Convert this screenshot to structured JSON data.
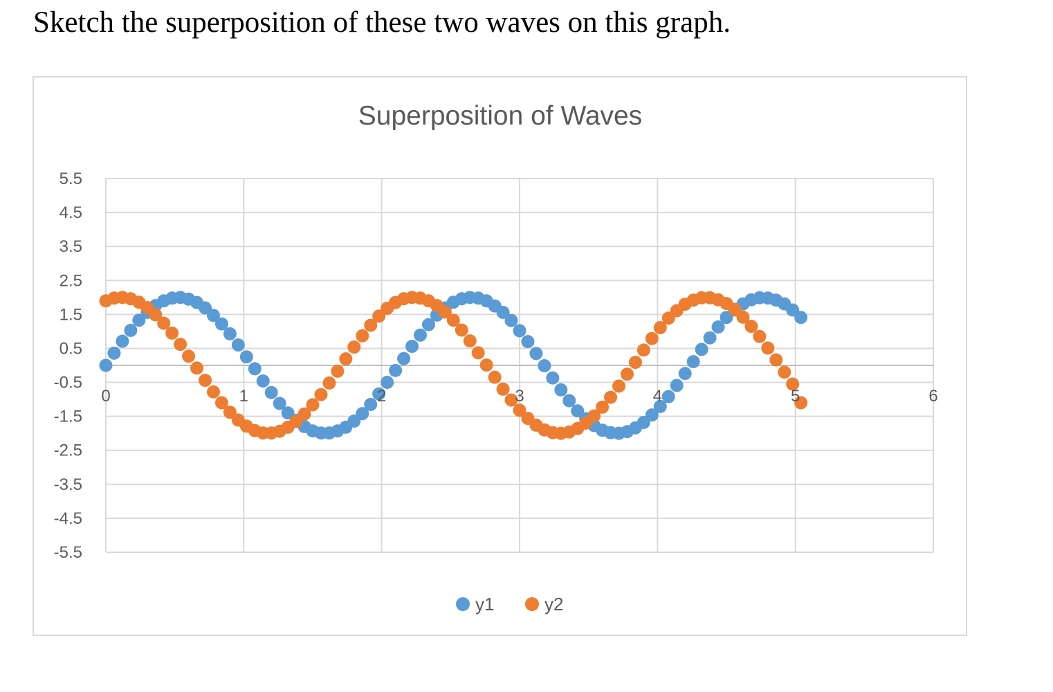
{
  "question": "Sketch the superposition of these two waves on this graph.",
  "chart_data": {
    "type": "scatter",
    "title": "Superposition of Waves",
    "xlabel": "",
    "ylabel": "",
    "xlim": [
      0,
      6
    ],
    "ylim": [
      -5.5,
      5.5
    ],
    "x_ticks": [
      0,
      1,
      2,
      3,
      4,
      5,
      6
    ],
    "y_ticks": [
      5.5,
      4.5,
      3.5,
      2.5,
      1.5,
      0.5,
      -0.5,
      -1.5,
      -2.5,
      -3.5,
      -4.5,
      -5.5
    ],
    "grid": true,
    "legend_position": "bottom",
    "x": [
      0,
      0.06,
      0.12,
      0.18,
      0.24,
      0.3,
      0.36,
      0.42,
      0.48,
      0.54,
      0.6,
      0.66,
      0.72,
      0.78,
      0.84,
      0.9,
      0.96,
      1.02,
      1.08,
      1.14,
      1.2,
      1.26,
      1.32,
      1.38,
      1.44,
      1.5,
      1.56,
      1.62,
      1.68,
      1.74,
      1.8,
      1.86,
      1.92,
      1.98,
      2.04,
      2.1,
      2.16,
      2.22,
      2.28,
      2.34,
      2.4,
      2.46,
      2.52,
      2.58,
      2.64,
      2.7,
      2.76,
      2.82,
      2.88,
      2.94,
      3,
      3.06,
      3.12,
      3.18,
      3.24,
      3.3,
      3.36,
      3.42,
      3.48,
      3.54,
      3.6,
      3.66,
      3.72,
      3.78,
      3.84,
      3.9,
      3.96,
      4.02,
      4.08,
      4.14,
      4.2,
      4.26,
      4.32,
      4.38,
      4.44,
      4.5,
      4.56,
      4.62,
      4.68,
      4.74,
      4.8,
      4.86,
      4.92,
      4.98,
      5.04
    ],
    "series": [
      {
        "name": "y1",
        "color": "#5b9bd5",
        "values": [
          0,
          0.36,
          0.71,
          1.03,
          1.33,
          1.56,
          1.76,
          1.9,
          1.98,
          2,
          1.95,
          1.85,
          1.69,
          1.47,
          1.22,
          0.93,
          0.6,
          0.25,
          -0.1,
          -0.46,
          -0.8,
          -1.12,
          -1.4,
          -1.62,
          -1.8,
          -1.93,
          -1.99,
          -1.99,
          -1.93,
          -1.82,
          -1.64,
          -1.42,
          -1.15,
          -0.84,
          -0.5,
          -0.15,
          0.2,
          0.56,
          0.89,
          1.2,
          1.48,
          1.69,
          1.86,
          1.96,
          2,
          1.98,
          1.9,
          1.75,
          1.56,
          1.32,
          1.02,
          0.7,
          0.35,
          -0.01,
          -0.37,
          -0.72,
          -1.04,
          -1.34,
          -1.57,
          -1.77,
          -1.91,
          -1.98,
          -2,
          -1.95,
          -1.84,
          -1.68,
          -1.46,
          -1.21,
          -0.92,
          -0.59,
          -0.24,
          0.11,
          0.47,
          0.81,
          1.13,
          1.41,
          1.63,
          1.81,
          1.93,
          1.99,
          1.98,
          1.92,
          1.81,
          1.63,
          1.41
        ]
      },
      {
        "name": "y2",
        "color": "#ed7d31",
        "values": [
          1.9,
          1.98,
          2,
          1.96,
          1.86,
          1.7,
          1.49,
          1.24,
          0.95,
          0.62,
          0.27,
          -0.08,
          -0.44,
          -0.78,
          -1.1,
          -1.38,
          -1.61,
          -1.79,
          -1.92,
          -1.99,
          -1.99,
          -1.94,
          -1.82,
          -1.65,
          -1.43,
          -1.16,
          -0.86,
          -0.52,
          -0.17,
          0.19,
          0.54,
          0.87,
          1.18,
          1.45,
          1.68,
          1.85,
          1.96,
          2,
          1.98,
          1.9,
          1.76,
          1.57,
          1.33,
          1.04,
          0.72,
          0.37,
          0.01,
          -0.35,
          -0.7,
          -1.02,
          -1.32,
          -1.56,
          -1.76,
          -1.9,
          -1.98,
          -2,
          -1.96,
          -1.86,
          -1.7,
          -1.49,
          -1.23,
          -0.94,
          -0.61,
          -0.26,
          0.09,
          0.45,
          0.79,
          1.11,
          1.39,
          1.61,
          1.8,
          1.92,
          1.99,
          1.99,
          1.93,
          1.82,
          1.65,
          1.42,
          1.15,
          0.85,
          0.51,
          0.16,
          -0.2,
          -0.55,
          -1.1
        ]
      }
    ]
  }
}
